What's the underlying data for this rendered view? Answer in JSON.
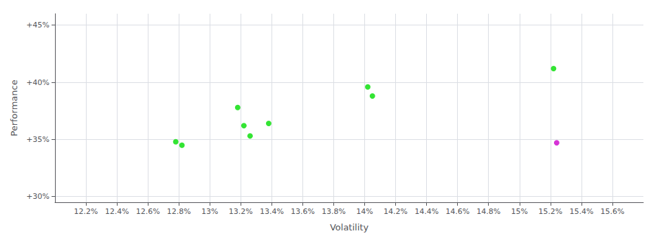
{
  "chart_data": {
    "type": "scatter",
    "xlabel": "Volatility",
    "ylabel": "Performance",
    "series": [
      {
        "color": "#00dd00",
        "x": [
          12.78,
          12.82,
          13.18,
          13.22,
          13.26,
          13.38,
          14.02,
          14.05,
          15.22
        ],
        "values": [
          34.8,
          34.5,
          37.8,
          36.2,
          35.3,
          36.4,
          39.6,
          38.8,
          41.2
        ]
      },
      {
        "color": "#cc00cc",
        "x": [
          15.24
        ],
        "values": [
          34.7
        ]
      }
    ],
    "xlim": [
      12.0,
      15.8
    ],
    "ylim": [
      29.5,
      46.0
    ],
    "xticks": [
      {
        "value": 12.2,
        "label": "12.2%"
      },
      {
        "value": 12.4,
        "label": "12.4%"
      },
      {
        "value": 12.6,
        "label": "12.6%"
      },
      {
        "value": 12.8,
        "label": "12.8%"
      },
      {
        "value": 13.0,
        "label": "13%"
      },
      {
        "value": 13.2,
        "label": "13.2%"
      },
      {
        "value": 13.4,
        "label": "13.4%"
      },
      {
        "value": 13.6,
        "label": "13.6%"
      },
      {
        "value": 13.8,
        "label": "13.8%"
      },
      {
        "value": 14.0,
        "label": "14%"
      },
      {
        "value": 14.2,
        "label": "14.2%"
      },
      {
        "value": 14.4,
        "label": "14.4%"
      },
      {
        "value": 14.6,
        "label": "14.6%"
      },
      {
        "value": 14.8,
        "label": "14.8%"
      },
      {
        "value": 15.0,
        "label": "15%"
      },
      {
        "value": 15.2,
        "label": "15.2%"
      },
      {
        "value": 15.4,
        "label": "15.4%"
      },
      {
        "value": 15.6,
        "label": "15.6%"
      }
    ],
    "yticks": [
      {
        "value": 30,
        "label": "+30%"
      },
      {
        "value": 35,
        "label": "+35%"
      },
      {
        "value": 40,
        "label": "+40%"
      },
      {
        "value": 45,
        "label": "+45%"
      }
    ],
    "grid": true
  }
}
